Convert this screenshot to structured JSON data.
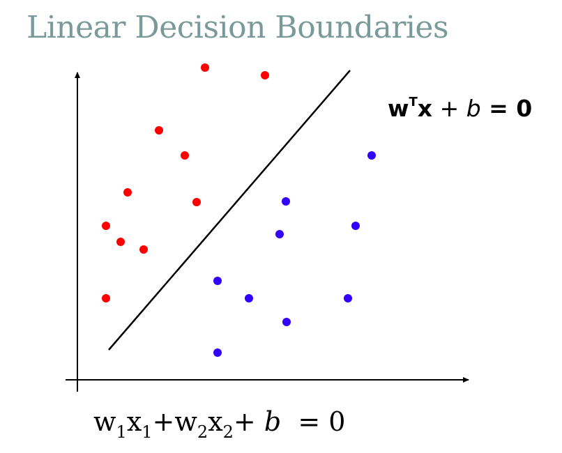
{
  "slide": {
    "title": "Linear Decision Boundaries"
  },
  "colors": {
    "title": "#7A9A9A",
    "class_a": "#FF0000",
    "class_b": "#3300FF",
    "boundary": "#000000",
    "axes": "#000000"
  },
  "equations": {
    "vector": {
      "w": "w",
      "sup": "T",
      "x": "x",
      "plus": " + ",
      "b": "b",
      "rhs": " = 0"
    },
    "scalar": {
      "w1": "w",
      "w1_sub": "1",
      "x1": "x",
      "x1_sub": "1",
      "plus1": "+",
      "w2": "w",
      "w2_sub": "2",
      "x2": "x",
      "x2_sub": "2",
      "plus2": "+ ",
      "b": "b",
      "rhs": "  = 0"
    }
  }
}
